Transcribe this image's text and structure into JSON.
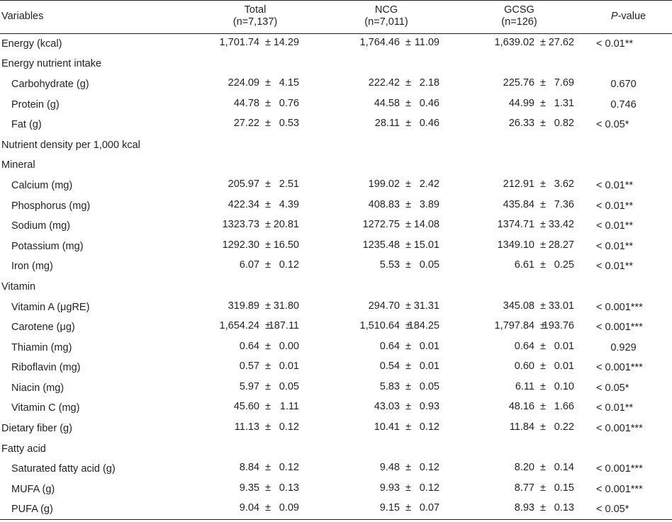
{
  "header": {
    "variables": "Variables",
    "total_line1": "Total",
    "total_line2": "(n=7,137)",
    "ncg_line1": "NCG",
    "ncg_line2": "(n=7,011)",
    "gcsg_line1": "GCSG",
    "gcsg_line2": "(n=126)",
    "p_italic": "P",
    "p_rest": "-value"
  },
  "pm": "±",
  "rows": [
    {
      "label": "Energy (kcal)",
      "indent": false,
      "total": [
        "1,701.74",
        "14.29"
      ],
      "ncg": [
        "1,764.46",
        "11.09"
      ],
      "gcsg": [
        "1,639.02",
        "27.62"
      ],
      "p": "< 0.01**"
    },
    {
      "label": "Energy nutrient intake",
      "indent": false,
      "section": true
    },
    {
      "label": "Carbohydrate (g)",
      "indent": true,
      "total": [
        "224.09",
        "4.15"
      ],
      "ncg": [
        "222.42",
        "2.18"
      ],
      "gcsg": [
        "225.76",
        "7.69"
      ],
      "p": "0.670",
      "p_center": true
    },
    {
      "label": "Protein (g)",
      "indent": true,
      "total": [
        "44.78",
        "0.76"
      ],
      "ncg": [
        "44.58",
        "0.46"
      ],
      "gcsg": [
        "44.99",
        "1.31"
      ],
      "p": "0.746",
      "p_center": true
    },
    {
      "label": "Fat (g)",
      "indent": true,
      "total": [
        "27.22",
        "0.53"
      ],
      "ncg": [
        "28.11",
        "0.46"
      ],
      "gcsg": [
        "26.33",
        "0.82"
      ],
      "p": "< 0.05*"
    },
    {
      "label": "Nutrient density per 1,000 kcal",
      "indent": false,
      "section": true
    },
    {
      "label": "Mineral",
      "indent": false,
      "section": true
    },
    {
      "label": "Calcium (mg)",
      "indent": true,
      "total": [
        "205.97",
        "2.51"
      ],
      "ncg": [
        "199.02",
        "2.42"
      ],
      "gcsg": [
        "212.91",
        "3.62"
      ],
      "p": "< 0.01**"
    },
    {
      "label": "Phosphorus (mg)",
      "indent": true,
      "total": [
        "422.34",
        "4.39"
      ],
      "ncg": [
        "408.83",
        "3.89"
      ],
      "gcsg": [
        "435.84",
        "7.36"
      ],
      "p": "< 0.01**"
    },
    {
      "label": "Sodium (mg)",
      "indent": true,
      "total": [
        "1323.73",
        "20.81"
      ],
      "ncg": [
        "1272.75",
        "14.08"
      ],
      "gcsg": [
        "1374.71",
        "33.42"
      ],
      "p": "< 0.01**"
    },
    {
      "label": "Potassium (mg)",
      "indent": true,
      "total": [
        "1292.30",
        "16.50"
      ],
      "ncg": [
        "1235.48",
        "15.01"
      ],
      "gcsg": [
        "1349.10",
        "28.27"
      ],
      "p": "< 0.01**"
    },
    {
      "label": "Iron (mg)",
      "indent": true,
      "total": [
        "6.07",
        "0.12"
      ],
      "ncg": [
        "5.53",
        "0.05"
      ],
      "gcsg": [
        "6.61",
        "0.25"
      ],
      "p": "< 0.01**"
    },
    {
      "label": "Vitamin",
      "indent": false,
      "section": true
    },
    {
      "label": "Vitamin A (μgRE)",
      "indent": true,
      "total": [
        "319.89",
        "31.80"
      ],
      "ncg": [
        "294.70",
        "31.31"
      ],
      "gcsg": [
        "345.08",
        "33.01"
      ],
      "p": "< 0.001***"
    },
    {
      "label": "Carotene (μg)",
      "indent": true,
      "total": [
        "1,654.24",
        "187.11"
      ],
      "ncg": [
        "1,510.64",
        "184.25"
      ],
      "gcsg": [
        "1,797.84",
        "193.76"
      ],
      "p": "< 0.001***"
    },
    {
      "label": "Thiamin (mg)",
      "indent": true,
      "total": [
        "0.64",
        "0.00"
      ],
      "ncg": [
        "0.64",
        "0.01"
      ],
      "gcsg": [
        "0.64",
        "0.01"
      ],
      "p": "0.929",
      "p_center": true
    },
    {
      "label": "Riboflavin (mg)",
      "indent": true,
      "total": [
        "0.57",
        "0.01"
      ],
      "ncg": [
        "0.54",
        "0.01"
      ],
      "gcsg": [
        "0.60",
        "0.01"
      ],
      "p": "< 0.001***"
    },
    {
      "label": "Niacin (mg)",
      "indent": true,
      "total": [
        "5.97",
        "0.05"
      ],
      "ncg": [
        "5.83",
        "0.05"
      ],
      "gcsg": [
        "6.11",
        "0.10"
      ],
      "p": "< 0.05*"
    },
    {
      "label": "Vitamin C (mg)",
      "indent": true,
      "total": [
        "45.60",
        "1.11"
      ],
      "ncg": [
        "43.03",
        "0.93"
      ],
      "gcsg": [
        "48.16",
        "1.66"
      ],
      "p": "< 0.01**"
    },
    {
      "label": "Dietary fiber (g)",
      "indent": false,
      "total": [
        "11.13",
        "0.12"
      ],
      "ncg": [
        "10.41",
        "0.12"
      ],
      "gcsg": [
        "11.84",
        "0.22"
      ],
      "p": "< 0.001***"
    },
    {
      "label": "Fatty acid",
      "indent": false,
      "section": true
    },
    {
      "label": "Saturated fatty acid (g)",
      "indent": true,
      "total": [
        "8.84",
        "0.12"
      ],
      "ncg": [
        "9.48",
        "0.12"
      ],
      "gcsg": [
        "8.20",
        "0.14"
      ],
      "p": "< 0.001***"
    },
    {
      "label": "MUFA (g)",
      "indent": true,
      "total": [
        "9.35",
        "0.13"
      ],
      "ncg": [
        "9.93",
        "0.12"
      ],
      "gcsg": [
        "8.77",
        "0.15"
      ],
      "p": "< 0.001***"
    },
    {
      "label": "PUFA (g)",
      "indent": true,
      "total": [
        "9.04",
        "0.09"
      ],
      "ncg": [
        "9.15",
        "0.07"
      ],
      "gcsg": [
        "8.93",
        "0.13"
      ],
      "p": "< 0.05*"
    }
  ]
}
